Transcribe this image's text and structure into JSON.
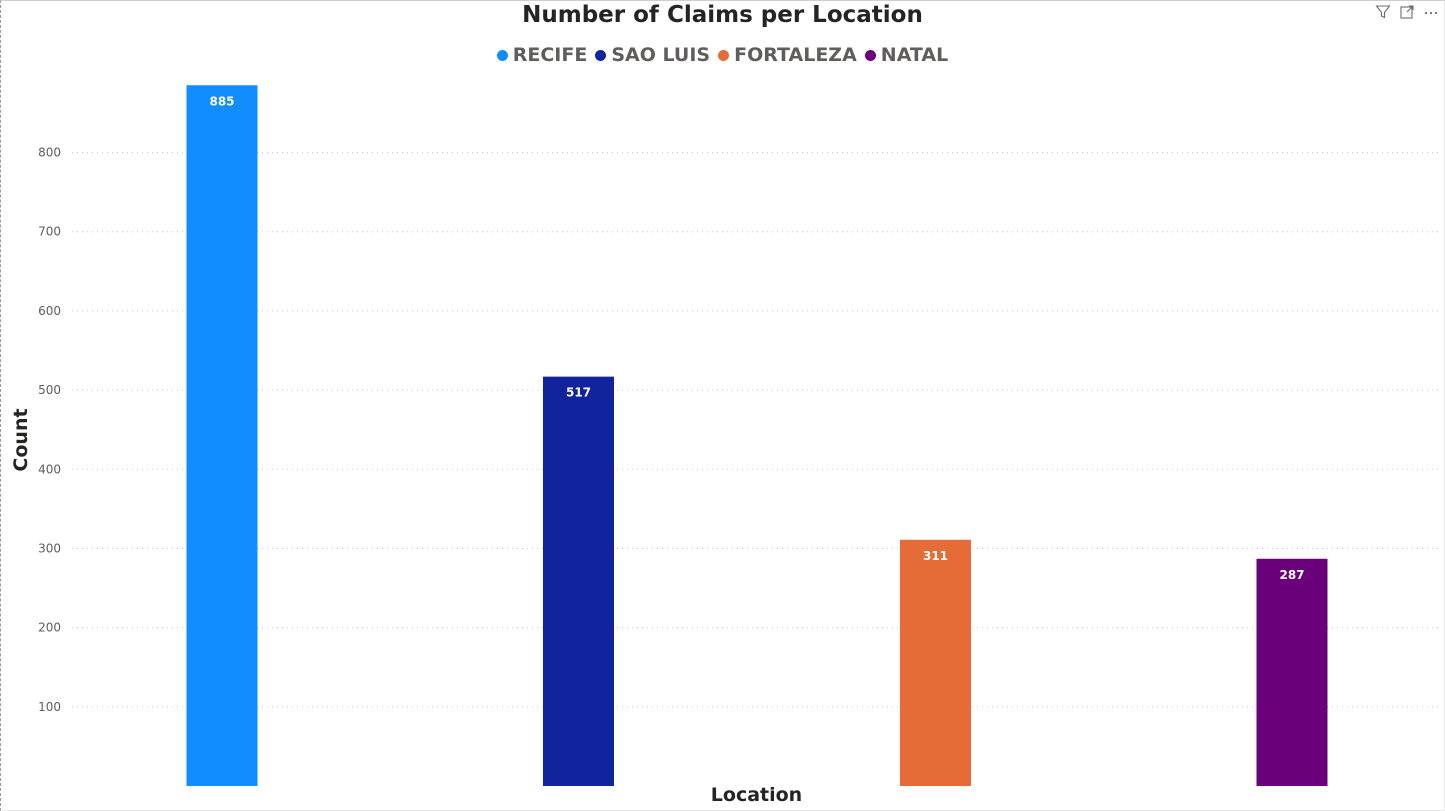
{
  "header": {
    "filter_icon": "filter-icon",
    "focus_icon": "focus-mode-icon",
    "more_icon": "more-options-icon"
  },
  "chart_data": {
    "type": "bar",
    "title": "Number of Claims per Location",
    "xlabel": "Location",
    "ylabel": "Count",
    "categories": [
      "RECIFE",
      "SAO LUIS",
      "FORTALEZA",
      "NATAL"
    ],
    "values": [
      885,
      517,
      311,
      287
    ],
    "colors": [
      "#118DFF",
      "#12239E",
      "#E66C37",
      "#6B007B"
    ],
    "data_labels": [
      "885",
      "517",
      "311",
      "287"
    ],
    "yticks": [
      "100",
      "200",
      "300",
      "400",
      "500",
      "600",
      "700",
      "800"
    ],
    "ylim": [
      0,
      885
    ],
    "grid": true,
    "legend": {
      "position": "top-center",
      "entries": [
        "RECIFE",
        "SAO LUIS",
        "FORTALEZA",
        "NATAL"
      ]
    }
  }
}
